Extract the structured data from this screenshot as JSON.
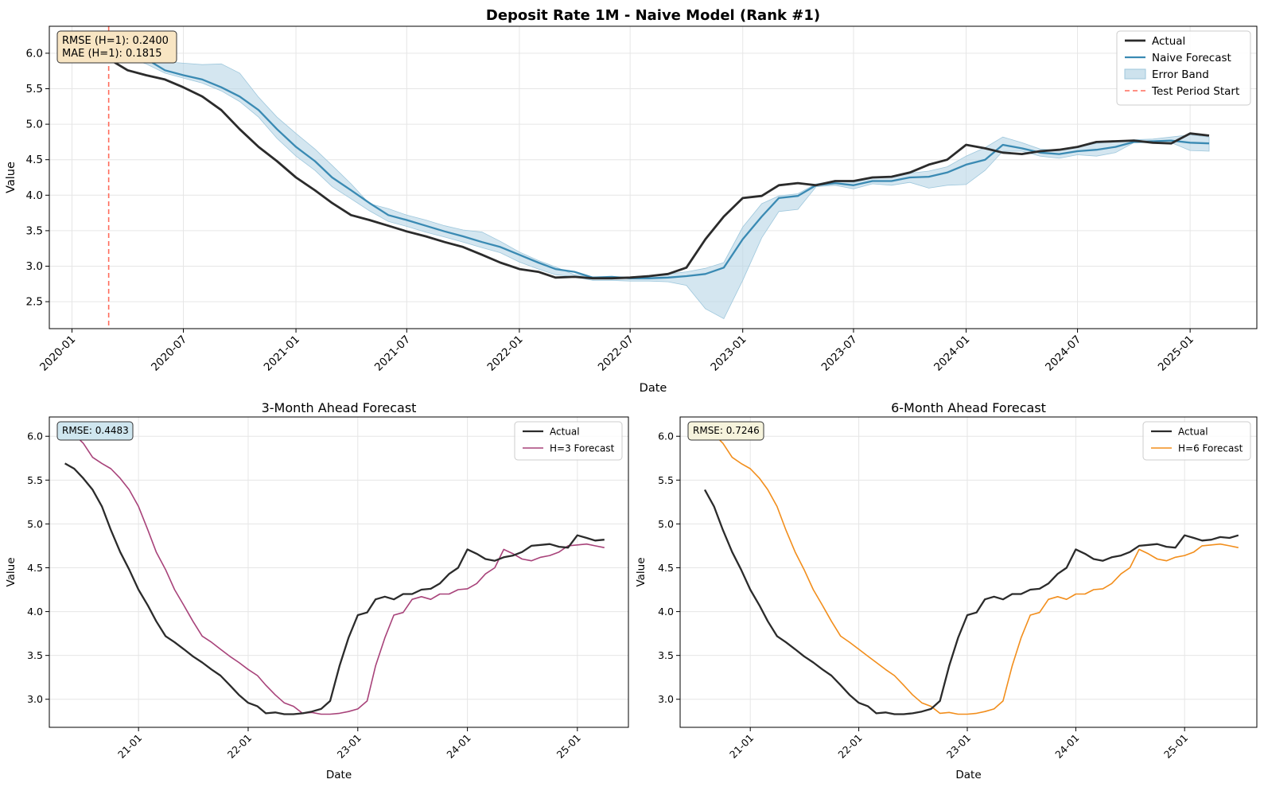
{
  "figure": {
    "background": "#ffffff",
    "grid_color": "#e6e6e6"
  },
  "chart_data": [
    {
      "type": "line",
      "title": "Deposit Rate 1M - Naive Model (Rank #1)",
      "xlabel": "Date",
      "ylabel": "Value",
      "x_ticks": [
        "2020-01",
        "2020-07",
        "2021-01",
        "2021-07",
        "2022-01",
        "2022-07",
        "2023-01",
        "2023-07",
        "2024-01",
        "2024-07",
        "2025-01"
      ],
      "xlim": [
        "2019-11-25",
        "2025-04-20"
      ],
      "ylim": [
        2.12,
        6.38
      ],
      "y_ticks": [
        2.5,
        3.0,
        3.5,
        4.0,
        4.5,
        5.0,
        5.5,
        6.0
      ],
      "grid": true,
      "legend": "top-right",
      "annotation": "RMSE (H=1): 0.2400\nMAE (H=1): 0.1815",
      "vline": {
        "name": "Test Period Start",
        "x": "2020-03-01",
        "color": "#ff6b5b"
      },
      "dates": [
        "2020-03-01",
        "2020-04-01",
        "2020-05-01",
        "2020-06-01",
        "2020-07-01",
        "2020-08-01",
        "2020-09-01",
        "2020-10-01",
        "2020-11-01",
        "2020-12-01",
        "2021-01-01",
        "2021-02-01",
        "2021-03-01",
        "2021-04-01",
        "2021-05-01",
        "2021-06-01",
        "2021-07-01",
        "2021-08-01",
        "2021-09-01",
        "2021-10-01",
        "2021-11-01",
        "2021-12-01",
        "2022-01-01",
        "2022-02-01",
        "2022-03-01",
        "2022-04-01",
        "2022-05-01",
        "2022-06-01",
        "2022-07-01",
        "2022-08-01",
        "2022-09-01",
        "2022-10-01",
        "2022-11-01",
        "2022-12-01",
        "2023-01-01",
        "2023-02-01",
        "2023-03-01",
        "2023-04-01",
        "2023-05-01",
        "2023-06-01",
        "2023-07-01",
        "2023-08-01",
        "2023-09-01",
        "2023-10-01",
        "2023-11-01",
        "2023-12-01",
        "2024-01-01",
        "2024-02-01",
        "2024-03-01",
        "2024-04-01",
        "2024-05-01",
        "2024-06-01",
        "2024-07-01",
        "2024-08-01",
        "2024-09-01",
        "2024-10-01",
        "2024-11-01",
        "2024-12-01",
        "2025-01-01",
        "2025-02-01"
      ],
      "series": [
        {
          "name": "Actual",
          "color": "#2b2b2b",
          "values": [
            5.92,
            5.76,
            5.69,
            5.63,
            5.52,
            5.39,
            5.2,
            4.93,
            4.68,
            4.48,
            4.25,
            4.07,
            3.89,
            3.72,
            3.65,
            3.57,
            3.49,
            3.42,
            3.34,
            3.27,
            3.16,
            3.05,
            2.96,
            2.92,
            2.84,
            2.85,
            2.83,
            2.83,
            2.84,
            2.86,
            2.89,
            2.98,
            3.38,
            3.7,
            3.96,
            3.99,
            4.14,
            4.17,
            4.14,
            4.2,
            4.2,
            4.25,
            4.26,
            4.32,
            4.43,
            4.5,
            4.71,
            4.66,
            4.6,
            4.58,
            4.62,
            4.64,
            4.68,
            4.75,
            4.76,
            4.77,
            4.74,
            4.73,
            4.87,
            4.84
          ]
        },
        {
          "name": "Naive Forecast",
          "color": "#3a8ab3",
          "values": [
            6.02,
            6.02,
            5.92,
            5.76,
            5.69,
            5.63,
            5.52,
            5.39,
            5.2,
            4.93,
            4.68,
            4.48,
            4.25,
            4.07,
            3.89,
            3.72,
            3.65,
            3.57,
            3.49,
            3.42,
            3.34,
            3.27,
            3.16,
            3.05,
            2.96,
            2.92,
            2.84,
            2.85,
            2.83,
            2.83,
            2.84,
            2.86,
            2.89,
            2.98,
            3.38,
            3.7,
            3.96,
            3.99,
            4.14,
            4.17,
            4.14,
            4.2,
            4.2,
            4.25,
            4.26,
            4.32,
            4.43,
            4.5,
            4.71,
            4.66,
            4.6,
            4.58,
            4.62,
            4.64,
            4.68,
            4.75,
            4.76,
            4.77,
            4.74,
            4.73
          ]
        }
      ],
      "band": {
        "name": "Error Band",
        "color": "#b8d6e6",
        "lower": [
          5.95,
          5.93,
          5.85,
          5.72,
          5.65,
          5.58,
          5.47,
          5.32,
          5.1,
          4.8,
          4.55,
          4.35,
          4.12,
          3.95,
          3.78,
          3.63,
          3.56,
          3.48,
          3.41,
          3.34,
          3.26,
          3.19,
          3.06,
          2.96,
          2.88,
          2.85,
          2.8,
          2.8,
          2.79,
          2.79,
          2.78,
          2.73,
          2.4,
          2.26,
          2.8,
          3.4,
          3.77,
          3.8,
          4.12,
          4.14,
          4.09,
          4.16,
          4.14,
          4.18,
          4.1,
          4.14,
          4.15,
          4.35,
          4.62,
          4.62,
          4.55,
          4.52,
          4.57,
          4.55,
          4.6,
          4.74,
          4.74,
          4.74,
          4.63,
          4.62
        ],
        "upper": [
          6.1,
          6.12,
          6.02,
          5.88,
          5.86,
          5.84,
          5.85,
          5.72,
          5.38,
          5.1,
          4.87,
          4.65,
          4.42,
          4.16,
          3.88,
          3.81,
          3.72,
          3.65,
          3.57,
          3.51,
          3.48,
          3.35,
          3.2,
          3.08,
          2.99,
          2.88,
          2.85,
          2.85,
          2.85,
          2.87,
          2.89,
          2.92,
          2.97,
          3.05,
          3.55,
          3.88,
          3.99,
          4.02,
          4.16,
          4.2,
          4.18,
          4.24,
          4.26,
          4.31,
          4.34,
          4.4,
          4.55,
          4.67,
          4.82,
          4.74,
          4.65,
          4.63,
          4.68,
          4.73,
          4.76,
          4.78,
          4.79,
          4.82,
          4.85,
          4.82
        ]
      }
    },
    {
      "type": "line",
      "title": "3-Month Ahead Forecast",
      "xlabel": "Date",
      "ylabel": "Value",
      "x_ticks": [
        "21-01",
        "22-01",
        "23-01",
        "24-01",
        "25-01"
      ],
      "xlim": [
        "2020-03-10",
        "2025-06-20"
      ],
      "ylim": [
        2.68,
        6.22
      ],
      "y_ticks": [
        3.0,
        3.5,
        4.0,
        4.5,
        5.0,
        5.5,
        6.0
      ],
      "grid": true,
      "legend": "top-right",
      "annotation": "RMSE: 0.4483",
      "dates": [
        "2020-05-01",
        "2020-06-01",
        "2020-07-01",
        "2020-08-01",
        "2020-09-01",
        "2020-10-01",
        "2020-11-01",
        "2020-12-01",
        "2021-01-01",
        "2021-02-01",
        "2021-03-01",
        "2021-04-01",
        "2021-05-01",
        "2021-06-01",
        "2021-07-01",
        "2021-08-01",
        "2021-09-01",
        "2021-10-01",
        "2021-11-01",
        "2021-12-01",
        "2022-01-01",
        "2022-02-01",
        "2022-03-01",
        "2022-04-01",
        "2022-05-01",
        "2022-06-01",
        "2022-07-01",
        "2022-08-01",
        "2022-09-01",
        "2022-10-01",
        "2022-11-01",
        "2022-12-01",
        "2023-01-01",
        "2023-02-01",
        "2023-03-01",
        "2023-04-01",
        "2023-05-01",
        "2023-06-01",
        "2023-07-01",
        "2023-08-01",
        "2023-09-01",
        "2023-10-01",
        "2023-11-01",
        "2023-12-01",
        "2024-01-01",
        "2024-02-01",
        "2024-03-01",
        "2024-04-01",
        "2024-05-01",
        "2024-06-01",
        "2024-07-01",
        "2024-08-01",
        "2024-09-01",
        "2024-10-01",
        "2024-11-01",
        "2024-12-01",
        "2025-01-01",
        "2025-02-01",
        "2025-03-01",
        "2025-04-01"
      ],
      "series": [
        {
          "name": "Actual",
          "color": "#2b2b2b",
          "values": [
            5.69,
            5.63,
            5.52,
            5.39,
            5.2,
            4.93,
            4.68,
            4.48,
            4.25,
            4.07,
            3.89,
            3.72,
            3.65,
            3.57,
            3.49,
            3.42,
            3.34,
            3.27,
            3.16,
            3.05,
            2.96,
            2.92,
            2.84,
            2.85,
            2.83,
            2.83,
            2.84,
            2.86,
            2.89,
            2.98,
            3.38,
            3.7,
            3.96,
            3.99,
            4.14,
            4.17,
            4.14,
            4.2,
            4.2,
            4.25,
            4.26,
            4.32,
            4.43,
            4.5,
            4.71,
            4.66,
            4.6,
            4.58,
            4.62,
            4.64,
            4.68,
            4.75,
            4.76,
            4.77,
            4.74,
            4.73,
            4.87,
            4.84,
            4.81,
            4.82
          ]
        },
        {
          "name": "H=3 Forecast",
          "color": "#a8437a",
          "values": [
            6.1,
            6.02,
            5.92,
            5.76,
            5.69,
            5.63,
            5.52,
            5.39,
            5.2,
            4.93,
            4.68,
            4.48,
            4.25,
            4.07,
            3.89,
            3.72,
            3.65,
            3.57,
            3.49,
            3.42,
            3.34,
            3.27,
            3.16,
            3.05,
            2.96,
            2.92,
            2.84,
            2.85,
            2.83,
            2.83,
            2.84,
            2.86,
            2.89,
            2.98,
            3.38,
            3.7,
            3.96,
            3.99,
            4.14,
            4.17,
            4.14,
            4.2,
            4.2,
            4.25,
            4.26,
            4.32,
            4.43,
            4.5,
            4.71,
            4.66,
            4.6,
            4.58,
            4.62,
            4.64,
            4.68,
            4.75,
            4.76,
            4.77,
            4.75,
            4.73
          ]
        }
      ]
    },
    {
      "type": "line",
      "title": "6-Month Ahead Forecast",
      "xlabel": "Date",
      "ylabel": "Value",
      "x_ticks": [
        "21-01",
        "22-01",
        "23-01",
        "24-01",
        "25-01"
      ],
      "xlim": [
        "2020-05-10",
        "2025-09-01"
      ],
      "ylim": [
        2.68,
        6.22
      ],
      "y_ticks": [
        3.0,
        3.5,
        4.0,
        4.5,
        5.0,
        5.5,
        6.0
      ],
      "grid": true,
      "legend": "top-right",
      "annotation": "RMSE: 0.7246",
      "dates": [
        "2020-08-01",
        "2020-09-01",
        "2020-10-01",
        "2020-11-01",
        "2020-12-01",
        "2021-01-01",
        "2021-02-01",
        "2021-03-01",
        "2021-04-01",
        "2021-05-01",
        "2021-06-01",
        "2021-07-01",
        "2021-08-01",
        "2021-09-01",
        "2021-10-01",
        "2021-11-01",
        "2021-12-01",
        "2022-01-01",
        "2022-02-01",
        "2022-03-01",
        "2022-04-01",
        "2022-05-01",
        "2022-06-01",
        "2022-07-01",
        "2022-08-01",
        "2022-09-01",
        "2022-10-01",
        "2022-11-01",
        "2022-12-01",
        "2023-01-01",
        "2023-02-01",
        "2023-03-01",
        "2023-04-01",
        "2023-05-01",
        "2023-06-01",
        "2023-07-01",
        "2023-08-01",
        "2023-09-01",
        "2023-10-01",
        "2023-11-01",
        "2023-12-01",
        "2024-01-01",
        "2024-02-01",
        "2024-03-01",
        "2024-04-01",
        "2024-05-01",
        "2024-06-01",
        "2024-07-01",
        "2024-08-01",
        "2024-09-01",
        "2024-10-01",
        "2024-11-01",
        "2024-12-01",
        "2025-01-01",
        "2025-02-01",
        "2025-03-01",
        "2025-04-01",
        "2025-05-01",
        "2025-06-01",
        "2025-07-01"
      ],
      "series": [
        {
          "name": "Actual",
          "color": "#2b2b2b",
          "values": [
            5.39,
            5.2,
            4.93,
            4.68,
            4.48,
            4.25,
            4.07,
            3.89,
            3.72,
            3.65,
            3.57,
            3.49,
            3.42,
            3.34,
            3.27,
            3.16,
            3.05,
            2.96,
            2.92,
            2.84,
            2.85,
            2.83,
            2.83,
            2.84,
            2.86,
            2.89,
            2.98,
            3.38,
            3.7,
            3.96,
            3.99,
            4.14,
            4.17,
            4.14,
            4.2,
            4.2,
            4.25,
            4.26,
            4.32,
            4.43,
            4.5,
            4.71,
            4.66,
            4.6,
            4.58,
            4.62,
            4.64,
            4.68,
            4.75,
            4.76,
            4.77,
            4.74,
            4.73,
            4.87,
            4.84,
            4.81,
            4.82,
            4.85,
            4.84,
            4.87
          ]
        },
        {
          "name": "H=6 Forecast",
          "color": "#f28e1c",
          "values": [
            6.08,
            6.02,
            5.92,
            5.76,
            5.69,
            5.63,
            5.52,
            5.39,
            5.2,
            4.93,
            4.68,
            4.48,
            4.25,
            4.07,
            3.89,
            3.72,
            3.65,
            3.57,
            3.49,
            3.42,
            3.34,
            3.27,
            3.16,
            3.05,
            2.96,
            2.92,
            2.84,
            2.85,
            2.83,
            2.83,
            2.84,
            2.86,
            2.89,
            2.98,
            3.38,
            3.7,
            3.96,
            3.99,
            4.14,
            4.17,
            4.14,
            4.2,
            4.2,
            4.25,
            4.26,
            4.32,
            4.43,
            4.5,
            4.71,
            4.66,
            4.6,
            4.58,
            4.62,
            4.64,
            4.68,
            4.75,
            4.76,
            4.77,
            4.75,
            4.73
          ]
        }
      ]
    }
  ]
}
